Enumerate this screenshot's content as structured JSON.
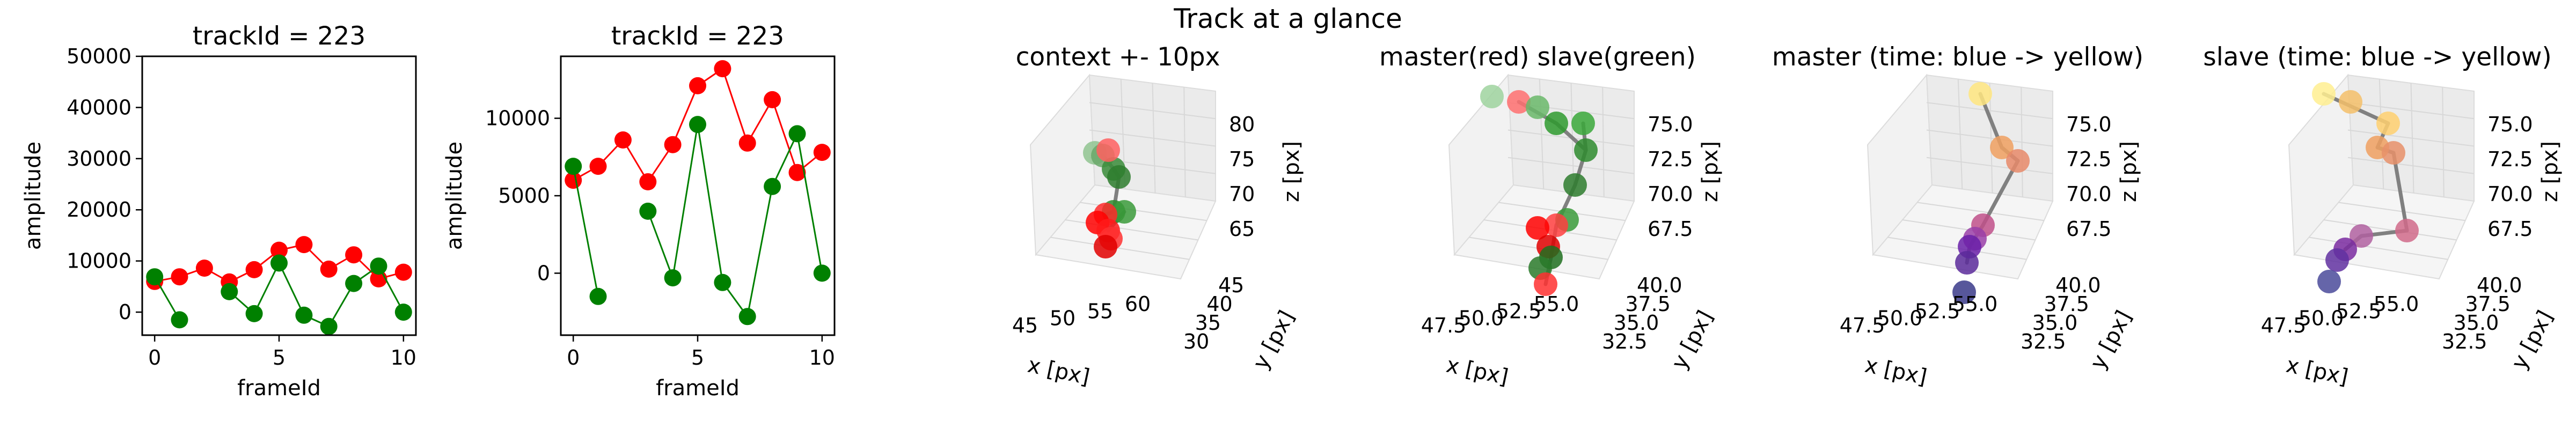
{
  "figure": {
    "suptitle": "Track at a glance",
    "colors": {
      "master": "#ff0000",
      "slave": "#008000",
      "line3d": "#808080"
    }
  },
  "chart_data": [
    {
      "type": "line",
      "title": "trackId = 223",
      "xlabel": "frameId",
      "ylabel": "amplitude",
      "xlim": [
        -0.5,
        10.5
      ],
      "ylim": [
        -4500,
        50000
      ],
      "xticks": [
        0,
        5,
        10
      ],
      "yticks": [
        0,
        10000,
        20000,
        30000,
        40000,
        50000
      ],
      "x": [
        0,
        1,
        2,
        3,
        4,
        5,
        6,
        7,
        8,
        9,
        10
      ],
      "series": [
        {
          "color": "#ff0000",
          "values": [
            6000,
            6900,
            8600,
            5900,
            8300,
            12100,
            13200,
            8400,
            11200,
            6500,
            7800
          ]
        },
        {
          "color": "#008000",
          "values": [
            6900,
            -1500,
            null,
            4000,
            -300,
            9600,
            -600,
            -2800,
            5600,
            9000,
            0
          ]
        }
      ]
    },
    {
      "type": "line",
      "title": "trackId = 223",
      "xlabel": "frameId",
      "ylabel": "amplitude",
      "xlim": [
        -0.5,
        10.5
      ],
      "ylim": [
        -4000,
        14000
      ],
      "xticks": [
        0,
        5,
        10
      ],
      "yticks": [
        0,
        5000,
        10000
      ],
      "x": [
        0,
        1,
        2,
        3,
        4,
        5,
        6,
        7,
        8,
        9,
        10
      ],
      "series": [
        {
          "color": "#ff0000",
          "values": [
            6000,
            6900,
            8600,
            5900,
            8300,
            12100,
            13200,
            8400,
            11200,
            6500,
            7800
          ]
        },
        {
          "color": "#008000",
          "values": [
            6900,
            -1500,
            null,
            4000,
            -300,
            9600,
            -600,
            -2800,
            5600,
            9000,
            0
          ]
        }
      ]
    },
    {
      "type": "scatter",
      "title": "context +- 10px",
      "xlabel": "x [px]",
      "ylabel": "y [px]",
      "zlabel": "z [px]",
      "xticks": [
        "45",
        "50",
        "55",
        "60"
      ],
      "yticks": [
        "30",
        "35",
        "40",
        "45"
      ],
      "zticks": [
        "65",
        "70",
        "75",
        "80"
      ]
    },
    {
      "type": "scatter",
      "title": "master(red) slave(green)",
      "xlabel": "x [px]",
      "ylabel": "y [px]",
      "zlabel": "z [px]",
      "xticks": [
        "47.5",
        "50.0",
        "52.5",
        "55.0"
      ],
      "yticks": [
        "32.5",
        "35.0",
        "37.5",
        "40.0"
      ],
      "zticks": [
        "67.5",
        "70.0",
        "72.5",
        "75.0"
      ]
    },
    {
      "type": "scatter",
      "title": "master (time: blue -> yellow)",
      "xlabel": "x [px]",
      "ylabel": "y [px]",
      "zlabel": "z [px]",
      "xticks": [
        "47.5",
        "50.0",
        "52.5",
        "55.0"
      ],
      "yticks": [
        "32.5",
        "35.0",
        "37.5",
        "40.0"
      ],
      "zticks": [
        "67.5",
        "70.0",
        "72.5",
        "75.0"
      ]
    },
    {
      "type": "scatter",
      "title": "slave (time: blue -> yellow)",
      "xlabel": "x [px]",
      "ylabel": "y [px]",
      "zlabel": "z [px]",
      "xticks": [
        "47.5",
        "50.0",
        "52.5",
        "55.0"
      ],
      "yticks": [
        "32.5",
        "35.0",
        "37.5",
        "40.0"
      ],
      "zticks": [
        "67.5",
        "70.0",
        "72.5",
        "75.0"
      ]
    }
  ]
}
